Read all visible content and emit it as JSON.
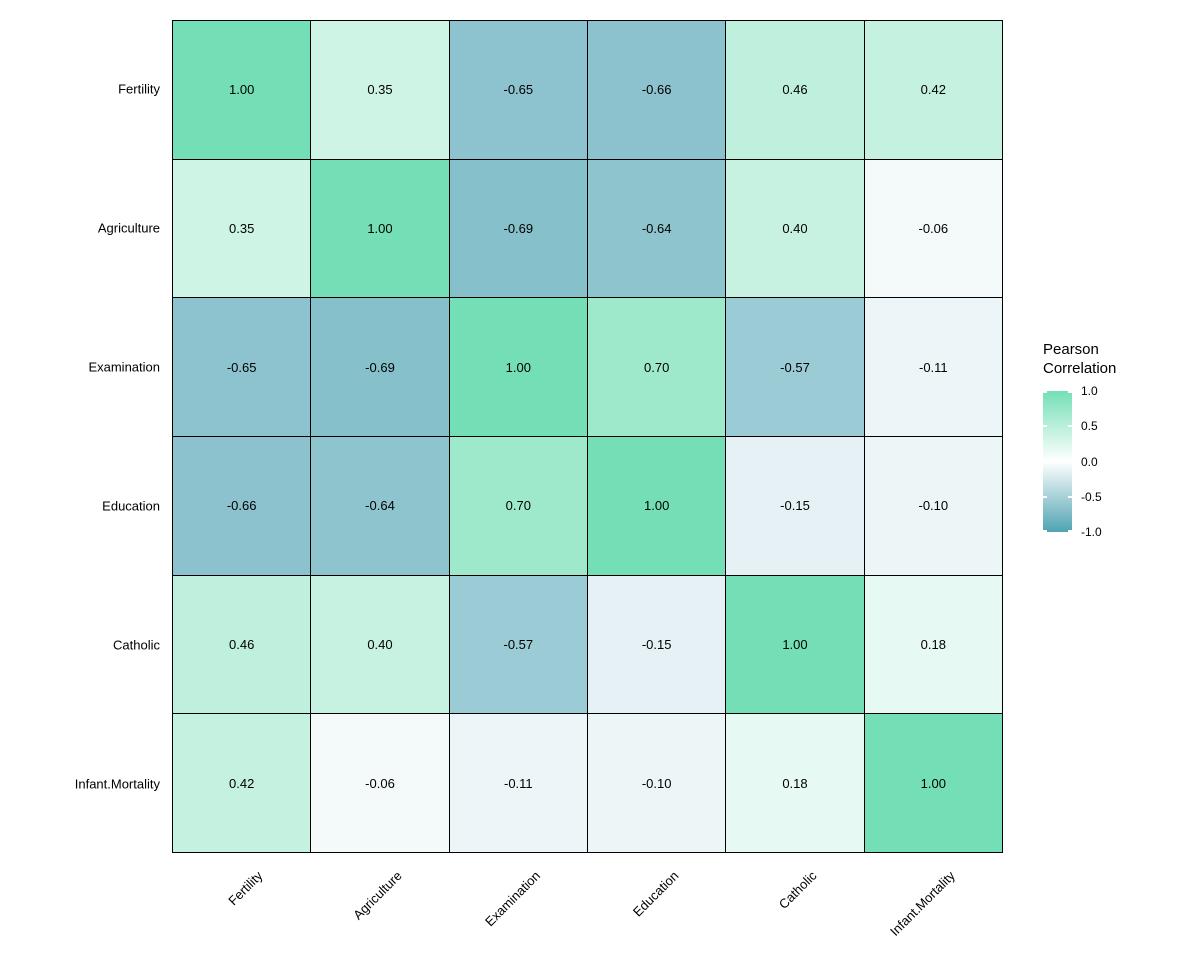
{
  "chart_data": {
    "type": "heatmap",
    "title": "",
    "categories": [
      "Fertility",
      "Agriculture",
      "Examination",
      "Education",
      "Catholic",
      "Infant.Mortality"
    ],
    "x_categories": [
      "Fertility",
      "Agriculture",
      "Examination",
      "Education",
      "Catholic",
      "Infant.Mortality"
    ],
    "matrix": [
      [
        1.0,
        0.35,
        -0.65,
        -0.66,
        0.46,
        0.42
      ],
      [
        0.35,
        1.0,
        -0.69,
        -0.64,
        0.4,
        -0.06
      ],
      [
        -0.65,
        -0.69,
        1.0,
        0.7,
        -0.57,
        -0.11
      ],
      [
        -0.66,
        -0.64,
        0.7,
        1.0,
        -0.15,
        -0.1
      ],
      [
        0.46,
        0.4,
        -0.57,
        -0.15,
        1.0,
        0.18
      ],
      [
        0.42,
        -0.06,
        -0.11,
        -0.1,
        0.18,
        1.0
      ]
    ],
    "cell_labels": [
      [
        "1.00",
        "0.35",
        "-0.65",
        "-0.66",
        "0.46",
        "0.42"
      ],
      [
        "0.35",
        "1.00",
        "-0.69",
        "-0.64",
        "0.40",
        "-0.06"
      ],
      [
        "-0.65",
        "-0.69",
        "1.00",
        "0.70",
        "-0.57",
        "-0.11"
      ],
      [
        "-0.66",
        "-0.64",
        "0.70",
        "1.00",
        "-0.15",
        "-0.10"
      ],
      [
        "0.46",
        "0.40",
        "-0.57",
        "-0.15",
        "1.00",
        "0.18"
      ],
      [
        "0.42",
        "-0.06",
        "-0.11",
        "-0.10",
        "0.18",
        "1.00"
      ]
    ],
    "value_range": [
      -1,
      1
    ],
    "grid": true,
    "legend": {
      "position": "right",
      "title_lines": [
        "Pearson",
        "Correlation"
      ],
      "ticks": [
        1.0,
        0.5,
        0.0,
        -0.5,
        -1.0
      ],
      "tick_labels": [
        "1.0",
        "0.5",
        "0.0",
        "-0.5",
        "-1.0"
      ]
    },
    "colors": {
      "high": "#74DFB6",
      "mid": "#FFFFFF",
      "low": "#4FA3B3",
      "grid_line": "#000000",
      "text": "#000000",
      "background": "#FFFFFF"
    }
  }
}
